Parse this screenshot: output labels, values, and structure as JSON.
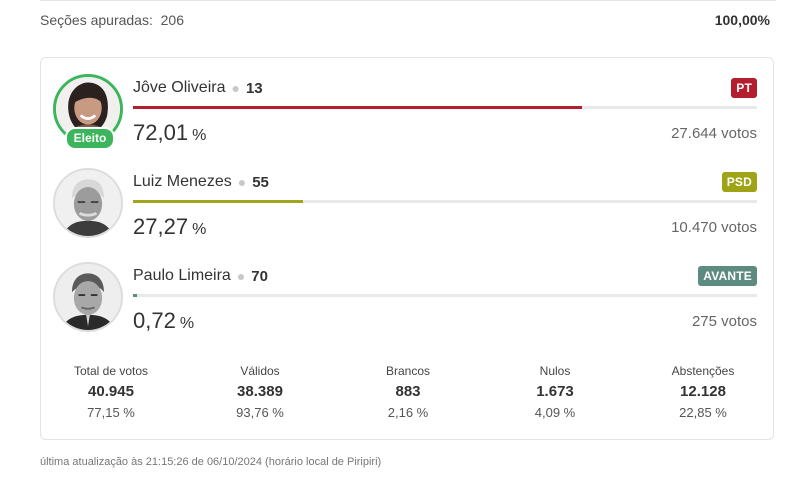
{
  "summary": {
    "label": "Seções apuradas:",
    "count": "206",
    "percent": "100,00%"
  },
  "candidates": [
    {
      "name": "Jôve Oliveira",
      "number": "13",
      "party": "PT",
      "party_color": "#b41f2f",
      "bar_color": "#b41f2f",
      "percent": "72,01",
      "percent_value": 72.01,
      "votes": "27.644 votos",
      "elected": true,
      "elected_label": "Eleito"
    },
    {
      "name": "Luiz Menezes",
      "number": "55",
      "party": "PSD",
      "party_color": "#9fa416",
      "bar_color": "#a3a51d",
      "percent": "27,27",
      "percent_value": 27.27,
      "votes": "10.470 votos",
      "elected": false
    },
    {
      "name": "Paulo Limeira",
      "number": "70",
      "party": "AVANTE",
      "party_color": "#5e8b80",
      "bar_color": "#5e8b80",
      "percent": "0,72",
      "percent_value": 0.72,
      "votes": "275 votos",
      "elected": false
    }
  ],
  "percent_symbol": "%",
  "stats": [
    {
      "label": "Total de votos",
      "value": "40.945",
      "sub": "77,15 %"
    },
    {
      "label": "Válidos",
      "value": "38.389",
      "sub": "93,76 %"
    },
    {
      "label": "Brancos",
      "value": "883",
      "sub": "2,16 %"
    },
    {
      "label": "Nulos",
      "value": "1.673",
      "sub": "4,09 %"
    },
    {
      "label": "Abstenções",
      "value": "12.128",
      "sub": "22,85 %"
    }
  ],
  "footer": "última atualização às 21:15:26 de 06/10/2024 (horário local de Piripiri)"
}
